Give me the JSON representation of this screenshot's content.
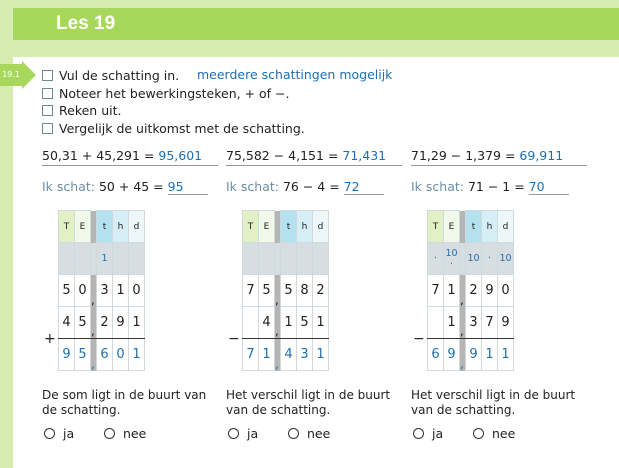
{
  "header": {
    "title": "Les 19"
  },
  "badge": "19.1",
  "steps": [
    "Vul de schatting in.",
    "Noteer het bewerkingsteken, + of −.",
    "Reken uit.",
    "Vergelijk de uitkomst met de schatting."
  ],
  "hint": "meerdere schattingen mogelijk",
  "estimate_label": "Ik schat:",
  "col_headers": [
    "T",
    "E",
    "t",
    "h",
    "d"
  ],
  "col_colors": [
    "#e2f0c6",
    "#f3f9e8",
    "#b3e2ee",
    "#d6eef5",
    "#edf7fa"
  ],
  "options": [
    "ja",
    "nee"
  ],
  "exercises": [
    {
      "equation": "50,31 + 45,291 = ",
      "answer": "95,601",
      "estimate": "50 + 45 = ",
      "estimate_answer": "95",
      "operator": "+",
      "carry": [
        "",
        "",
        "1",
        "",
        ""
      ],
      "row1": [
        "5",
        "0",
        "3",
        "1",
        "0"
      ],
      "row2": [
        "4",
        "5",
        "2",
        "9",
        "1"
      ],
      "result": [
        "9",
        "5",
        "6",
        "0",
        "1"
      ],
      "conclusion": "De som ligt in de buurt van de schatting."
    },
    {
      "equation": "75,582 − 4,151 = ",
      "answer": "71,431",
      "estimate": "76 − 4 = ",
      "estimate_answer": "72",
      "operator": "−",
      "carry": [
        "",
        "",
        "",
        "",
        ""
      ],
      "row1": [
        "7",
        "5",
        "5",
        "8",
        "2"
      ],
      "row2": [
        "",
        "4",
        "1",
        "5",
        "1"
      ],
      "result": [
        "7",
        "1",
        "4",
        "3",
        "1"
      ],
      "conclusion": "Het verschil ligt in de buurt van de schatting."
    },
    {
      "equation": "71,29 − 1,379 = ",
      "answer": "69,911",
      "estimate": "71 − 1 = ",
      "estimate_answer": "70",
      "operator": "−",
      "carry": [
        "·",
        "10 ·",
        "10",
        "·",
        "10"
      ],
      "row1": [
        "7",
        "1",
        "2",
        "9",
        "0"
      ],
      "row2": [
        "",
        "1",
        "3",
        "7",
        "9"
      ],
      "result": [
        "6",
        "9",
        "9",
        "1",
        "1"
      ],
      "conclusion": "Het verschil ligt in de buurt van de schatting."
    }
  ]
}
